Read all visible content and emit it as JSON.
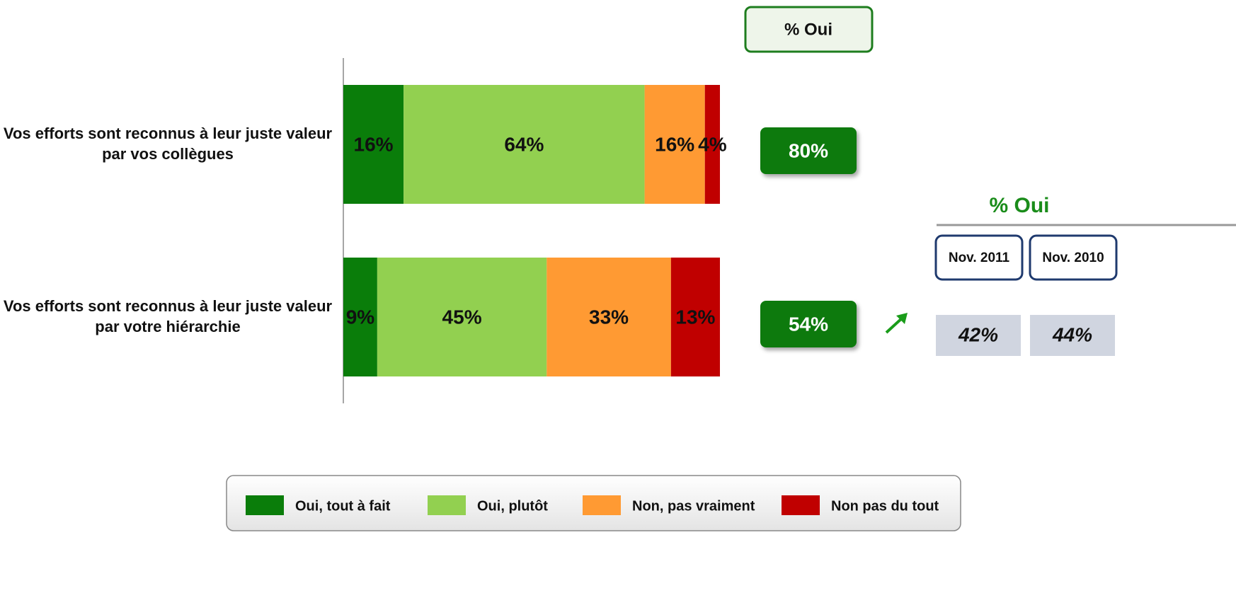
{
  "chart_data": {
    "type": "bar",
    "orientation": "horizontal",
    "stacked": true,
    "categories": [
      "Vos efforts sont reconnus à leur juste valeur par vos collègues",
      "Vos efforts sont reconnus à leur juste valeur par votre hiérarchie"
    ],
    "xlim": [
      0,
      100
    ],
    "series": [
      {
        "name": "Oui, tout à fait",
        "color": "#0a7d0a",
        "values": [
          16,
          9
        ],
        "value_labels": [
          "16%",
          "9%"
        ]
      },
      {
        "name": "Oui, plutôt",
        "color": "#92d050",
        "values": [
          64,
          45
        ],
        "value_labels": [
          "64%",
          "45%"
        ]
      },
      {
        "name": "Non, pas vraiment",
        "color": "#ff9a33",
        "values": [
          16,
          33
        ],
        "value_labels": [
          "16%",
          "33%"
        ]
      },
      {
        "name": "Non pas du tout",
        "color": "#c00000",
        "values": [
          4,
          13
        ],
        "value_labels": [
          "4%",
          "13%"
        ]
      }
    ],
    "oui": {
      "title": "% Oui",
      "values": [
        80,
        54
      ],
      "value_labels": [
        "80%",
        "54%"
      ],
      "color": "#0a7a0a"
    },
    "comparison": {
      "title": "% Oui",
      "columns": [
        "Nov. 2011",
        "Nov. 2010"
      ],
      "values": [
        42,
        44
      ],
      "value_labels": [
        "42%",
        "44%"
      ]
    }
  }
}
